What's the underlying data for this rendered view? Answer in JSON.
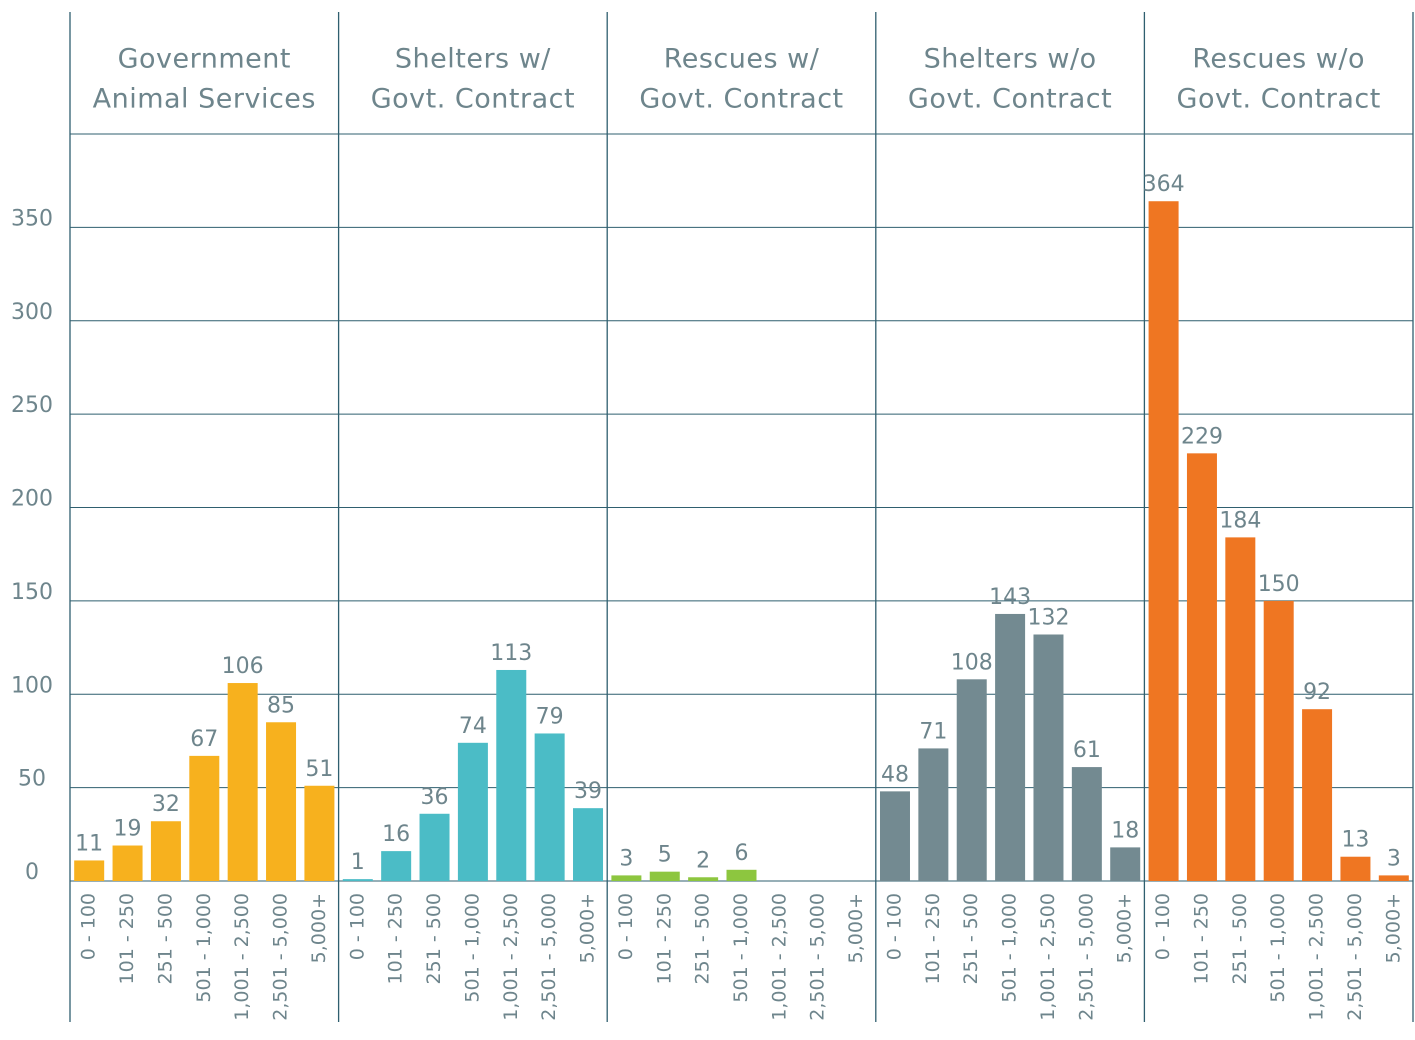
{
  "chart_data": {
    "type": "bar",
    "categories": [
      "0 - 100",
      "101 - 250",
      "251 - 500",
      "501 - 1,000",
      "1,001 - 2,500",
      "2,501 - 5,000",
      "5,000+"
    ],
    "panels": [
      {
        "title": [
          "Government",
          "Animal Services"
        ],
        "color": "#f7b11e",
        "values": [
          11,
          19,
          32,
          67,
          106,
          85,
          51
        ]
      },
      {
        "title": [
          "Shelters w/",
          "Govt. Contract"
        ],
        "color": "#4bbcc6",
        "values": [
          1,
          16,
          36,
          74,
          113,
          79,
          39
        ]
      },
      {
        "title": [
          "Rescues w/",
          "Govt. Contract"
        ],
        "color": "#8dc63f",
        "values": [
          3,
          5,
          2,
          6,
          null,
          null,
          null
        ]
      },
      {
        "title": [
          "Shelters w/o",
          "Govt. Contract"
        ],
        "color": "#738a91",
        "values": [
          48,
          71,
          108,
          143,
          132,
          61,
          18
        ]
      },
      {
        "title": [
          "Rescues w/o",
          "Govt. Contract"
        ],
        "color": "#ef7622",
        "values": [
          364,
          229,
          184,
          150,
          92,
          13,
          3
        ]
      }
    ],
    "ylim": [
      0,
      400
    ],
    "yticks": [
      0,
      50,
      100,
      150,
      200,
      250,
      300,
      350
    ],
    "grid": true
  }
}
